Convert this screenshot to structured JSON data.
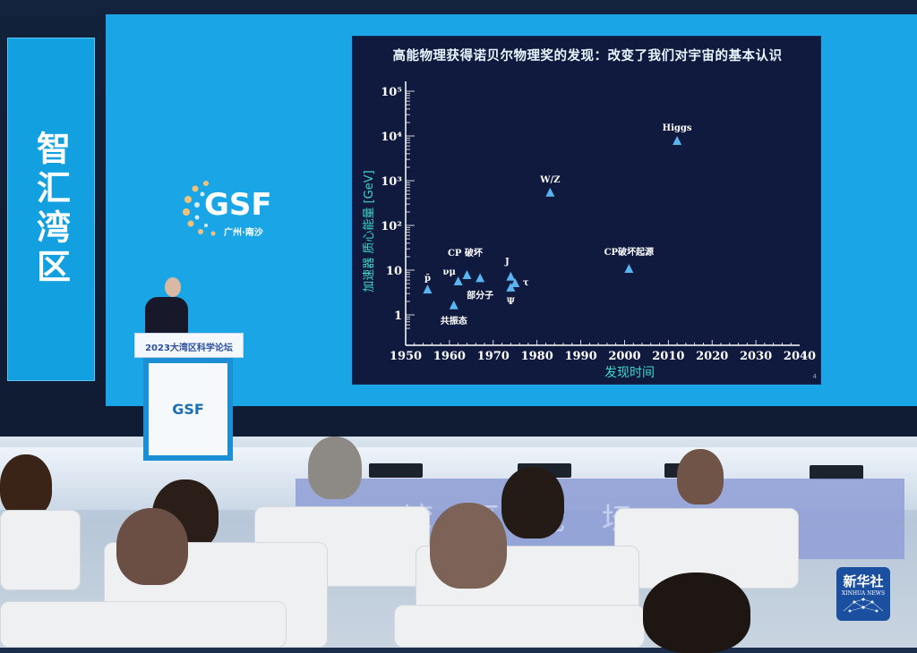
{
  "scene": {
    "banner_text": "智汇湾区",
    "logo_text": "GSF",
    "logo_city": "广州·南沙",
    "podium_text": "2023大湾区科学论坛",
    "podium_logo": "GSF",
    "watermark_cn": "新华社",
    "watermark_en": "XINHUA NEWS",
    "colors": {
      "screen_blue": "#1aa6e6",
      "slide_bg": "#0f1a3e",
      "marker": "#5ab4f0",
      "axis_label": "#3fd6c8"
    }
  },
  "slide": {
    "title": "高能物理获得诺贝尔物理奖的发现：改变了我们对宇宙的基本认识",
    "page_number": "4"
  },
  "chart_data": {
    "type": "scatter",
    "title": "高能物理获得诺贝尔物理奖的发现：改变了我们对宇宙的基本认识",
    "xlabel": "发现时间",
    "ylabel": "加速器 质心能量 [GeV]",
    "xlim": [
      1950,
      2040
    ],
    "ylim": [
      0.5,
      100000
    ],
    "yscale": "log",
    "xticks": [
      "1950",
      "1960",
      "1970",
      "1980",
      "1990",
      "2000",
      "2010",
      "2020",
      "2030",
      "2040"
    ],
    "yticks": [
      {
        "value": 1,
        "label": "1"
      },
      {
        "value": 10,
        "label": "10"
      },
      {
        "value": 100,
        "label": "10²"
      },
      {
        "value": 1000,
        "label": "10³"
      },
      {
        "value": 10000,
        "label": "10⁴"
      },
      {
        "value": 100000,
        "label": "10⁵"
      }
    ],
    "grid": false,
    "points": [
      {
        "label": "p̄",
        "x": 1955,
        "y": 3.6
      },
      {
        "label": "共振态",
        "x": 1961,
        "y": 1.6
      },
      {
        "label": "νμ",
        "x": 1962,
        "y": 5.5
      },
      {
        "label": "CP 破坏",
        "x": 1964,
        "y": 7.6
      },
      {
        "label": "部分子",
        "x": 1967,
        "y": 6.5
      },
      {
        "label": "J",
        "x": 1974,
        "y": 7.0
      },
      {
        "label": "Ψ",
        "x": 1974,
        "y": 4.0
      },
      {
        "label": "τ",
        "x": 1975,
        "y": 5.0
      },
      {
        "label": "W/Z",
        "x": 1983,
        "y": 530
      },
      {
        "label": "CP破坏起源",
        "x": 2001,
        "y": 10.5
      },
      {
        "label": "Higgs",
        "x": 2012,
        "y": 7600
      }
    ]
  }
}
